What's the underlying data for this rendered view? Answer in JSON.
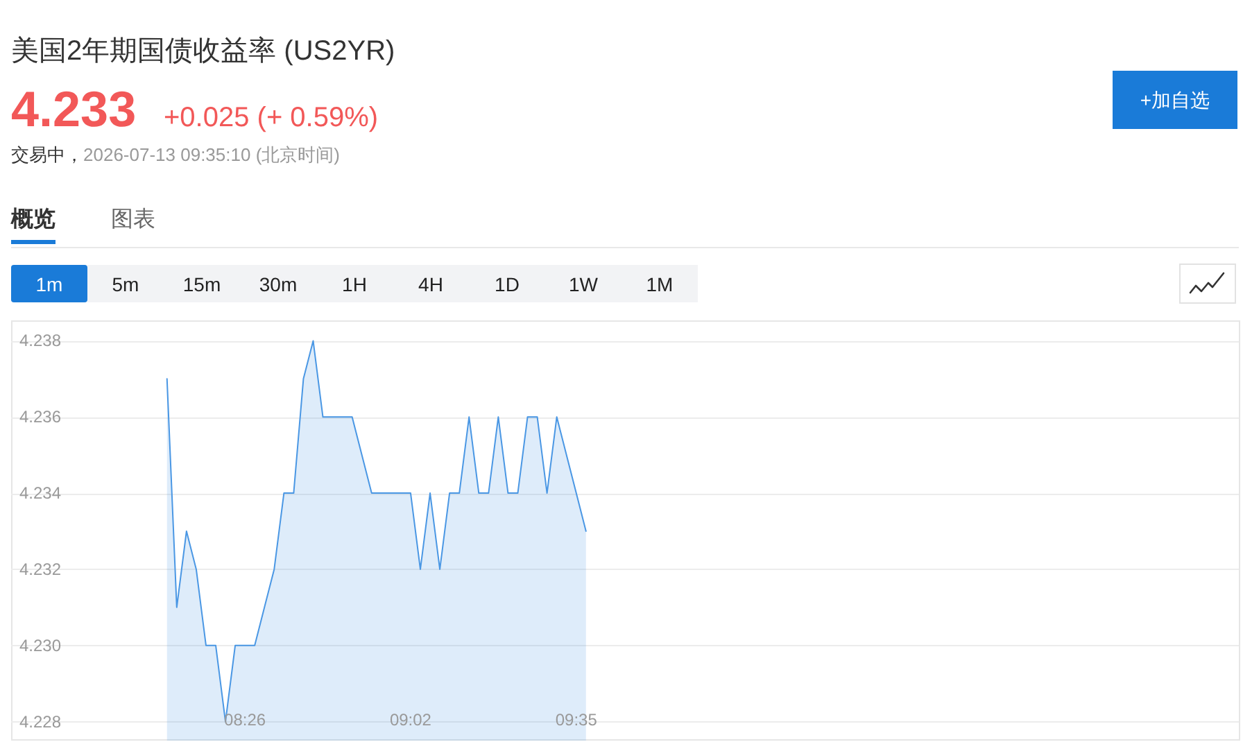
{
  "chart_data": {
    "type": "area",
    "title": "美国2年期国债收益率 (US2YR)",
    "annotations": [
      "4.233",
      "+0.025 (+ 0.59%)",
      "交易中，",
      "2026-07-13 09:35:10 (北京时间)",
      "+加自选",
      "概览",
      "图表",
      "1m",
      "5m",
      "15m",
      "30m",
      "1H",
      "4H",
      "1D",
      "1W",
      "1M"
    ],
    "categories": [
      null,
      null,
      null,
      null,
      null,
      null,
      null,
      null,
      null,
      null,
      null,
      null,
      null,
      null,
      null,
      null,
      null,
      null,
      null,
      null,
      null,
      null,
      null,
      null,
      "08:26",
      null,
      null,
      null,
      null,
      null,
      null,
      null,
      null,
      null,
      null,
      null,
      null,
      null,
      null,
      null,
      null,
      "09:02",
      null,
      null,
      null,
      null,
      null,
      null,
      null,
      null,
      null,
      null,
      null,
      null,
      null,
      null,
      null,
      null,
      "09:35",
      null,
      null,
      null,
      null,
      null,
      null,
      null,
      null,
      null,
      null,
      null,
      null,
      null,
      null,
      null,
      null,
      null,
      null,
      null,
      null,
      null,
      null,
      null,
      null,
      null,
      null,
      null,
      null,
      null,
      null,
      null,
      null,
      null,
      null,
      null,
      null,
      null,
      null,
      null,
      null,
      null,
      null,
      null,
      null,
      null,
      null,
      null,
      null,
      null,
      null,
      null,
      null,
      null,
      null,
      null,
      null,
      null,
      null,
      null,
      null,
      null,
      null,
      null,
      null,
      null,
      null,
      null,
      null
    ],
    "series": [
      {
        "color": "#4a97e4",
        "values": [
          null,
          null,
          null,
          null,
          null,
          null,
          null,
          null,
          null,
          null,
          null,
          null,
          null,
          null,
          null,
          null,
          4.237,
          4.231,
          4.233,
          4.232,
          4.23,
          4.23,
          4.228,
          4.23,
          4.23,
          4.23,
          4.231,
          4.232,
          4.234,
          4.234,
          4.237,
          4.238,
          4.236,
          4.236,
          4.236,
          4.236,
          4.235,
          4.234,
          4.234,
          4.234,
          4.234,
          4.234,
          4.232,
          4.234,
          4.232,
          4.234,
          4.234,
          4.236,
          4.234,
          4.234,
          4.236,
          4.234,
          4.234,
          4.236,
          4.236,
          4.234,
          4.236,
          4.235,
          4.234,
          4.233,
          null,
          null,
          null,
          null,
          null,
          null,
          null,
          null,
          null,
          null,
          null,
          null,
          null,
          null,
          null,
          null,
          null,
          null,
          null,
          null,
          null,
          null,
          null,
          null,
          null,
          null,
          null,
          null,
          null,
          null,
          null,
          null,
          null,
          null,
          null,
          null,
          null,
          null,
          null,
          null,
          null,
          null,
          null,
          null,
          null,
          null,
          null,
          null,
          null,
          null,
          null,
          null,
          null,
          null,
          null,
          null,
          null,
          null,
          null,
          null,
          null,
          null,
          null,
          null,
          null,
          null,
          null
        ]
      }
    ],
    "ylim": [
      4.2275,
      4.2385
    ],
    "yticks": [
      4.228,
      {
        "value": 4.23,
        "label": "4.230"
      },
      4.232,
      4.234,
      4.236,
      4.238
    ],
    "grid": "y"
  }
}
